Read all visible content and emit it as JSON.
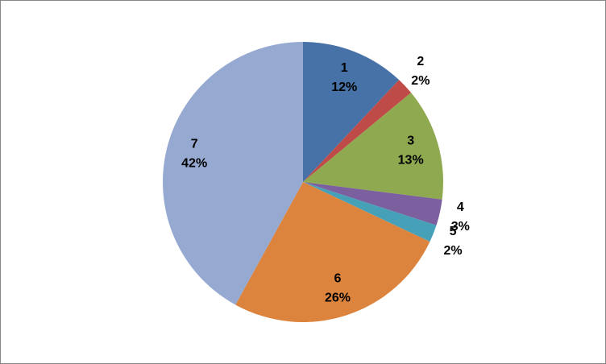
{
  "chart_data": {
    "type": "pie",
    "categories": [
      "1",
      "2",
      "3",
      "4",
      "5",
      "6",
      "7"
    ],
    "values": [
      12,
      2,
      13,
      3,
      2,
      26,
      42
    ],
    "value_labels": [
      "12%",
      "2%",
      "13%",
      "3%",
      "2%",
      "26%",
      "42%"
    ],
    "colors": [
      "#4672a8",
      "#be4b48",
      "#8ea94f",
      "#7c5f9e",
      "#45a0b8",
      "#dc843e",
      "#95a9d1"
    ]
  }
}
